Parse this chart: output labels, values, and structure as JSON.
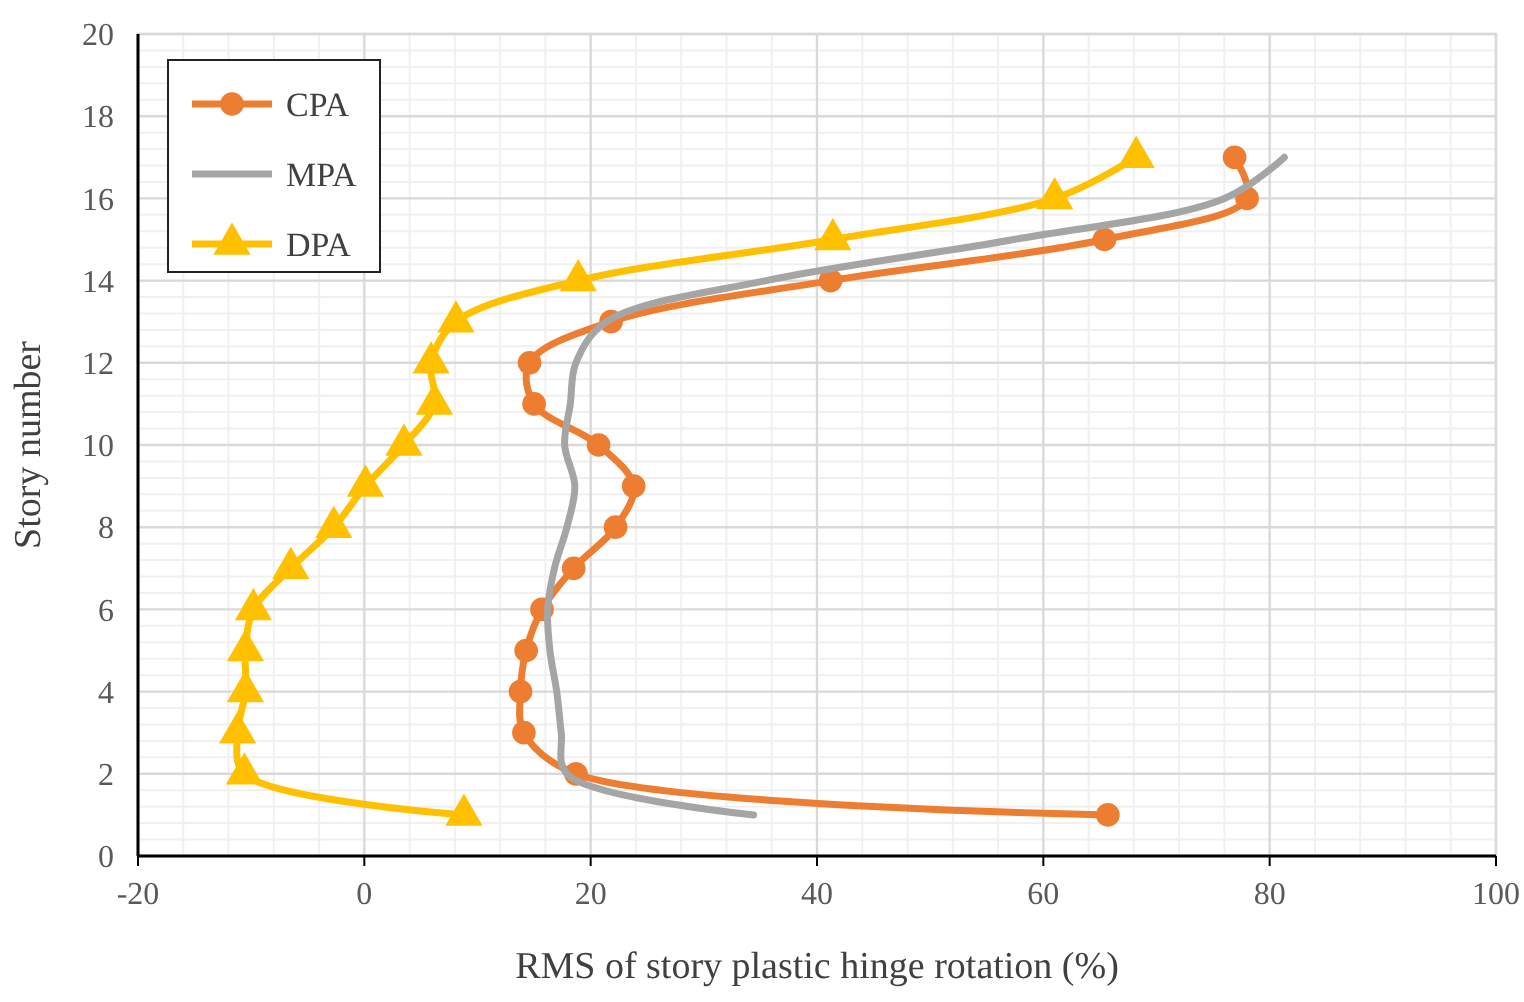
{
  "chart_data": {
    "type": "line",
    "xlabel": "RMS of story plastic hinge rotation (%)",
    "ylabel": "Story number",
    "xlim": [
      -20,
      100
    ],
    "xticks": [
      -20,
      0,
      20,
      40,
      60,
      80,
      100
    ],
    "ylim": [
      0,
      20
    ],
    "yticks": [
      0,
      2,
      4,
      6,
      8,
      10,
      12,
      14,
      16,
      18,
      20
    ],
    "grid": true,
    "legend": "top left",
    "line_style": "solid",
    "series": [
      {
        "name": "CPA",
        "color": "#ed7d31",
        "marker": "circle",
        "x": [
          65.7,
          18.7,
          14.1,
          13.8,
          14.3,
          15.7,
          18.5,
          22.2,
          23.8,
          20.7,
          15,
          14.6,
          21.8,
          41.2,
          65.4,
          78,
          76.9
        ],
        "values": [
          1,
          2,
          3,
          4,
          5,
          6,
          7,
          8,
          9,
          10,
          11,
          12,
          13,
          14,
          15,
          16,
          17
        ]
      },
      {
        "name": "MPA",
        "color": "#a5a5a5",
        "marker": "none",
        "x": [
          34.4,
          17.9,
          17.4,
          17,
          16.4,
          16.2,
          16.8,
          17.9,
          18.6,
          17.7,
          18.2,
          18.7,
          21.4,
          35.5,
          57.4,
          76,
          81.3
        ],
        "values": [
          1,
          2,
          3,
          4,
          5,
          6,
          7,
          8,
          9,
          10,
          11,
          12,
          13,
          14,
          15,
          16,
          17
        ]
      },
      {
        "name": "DPA",
        "color": "#ffc000",
        "marker": "triangle",
        "x": [
          8.8,
          -10.6,
          -11.2,
          -10.5,
          -10.5,
          -9.8,
          -6.5,
          -2.7,
          0.1,
          3.5,
          6.2,
          5.9,
          8.1,
          18.9,
          41.4,
          61,
          68.2
        ],
        "values": [
          1,
          2,
          3,
          4,
          5,
          6,
          7,
          8,
          9,
          10,
          11,
          12,
          13,
          14,
          15,
          16,
          17
        ]
      }
    ]
  }
}
